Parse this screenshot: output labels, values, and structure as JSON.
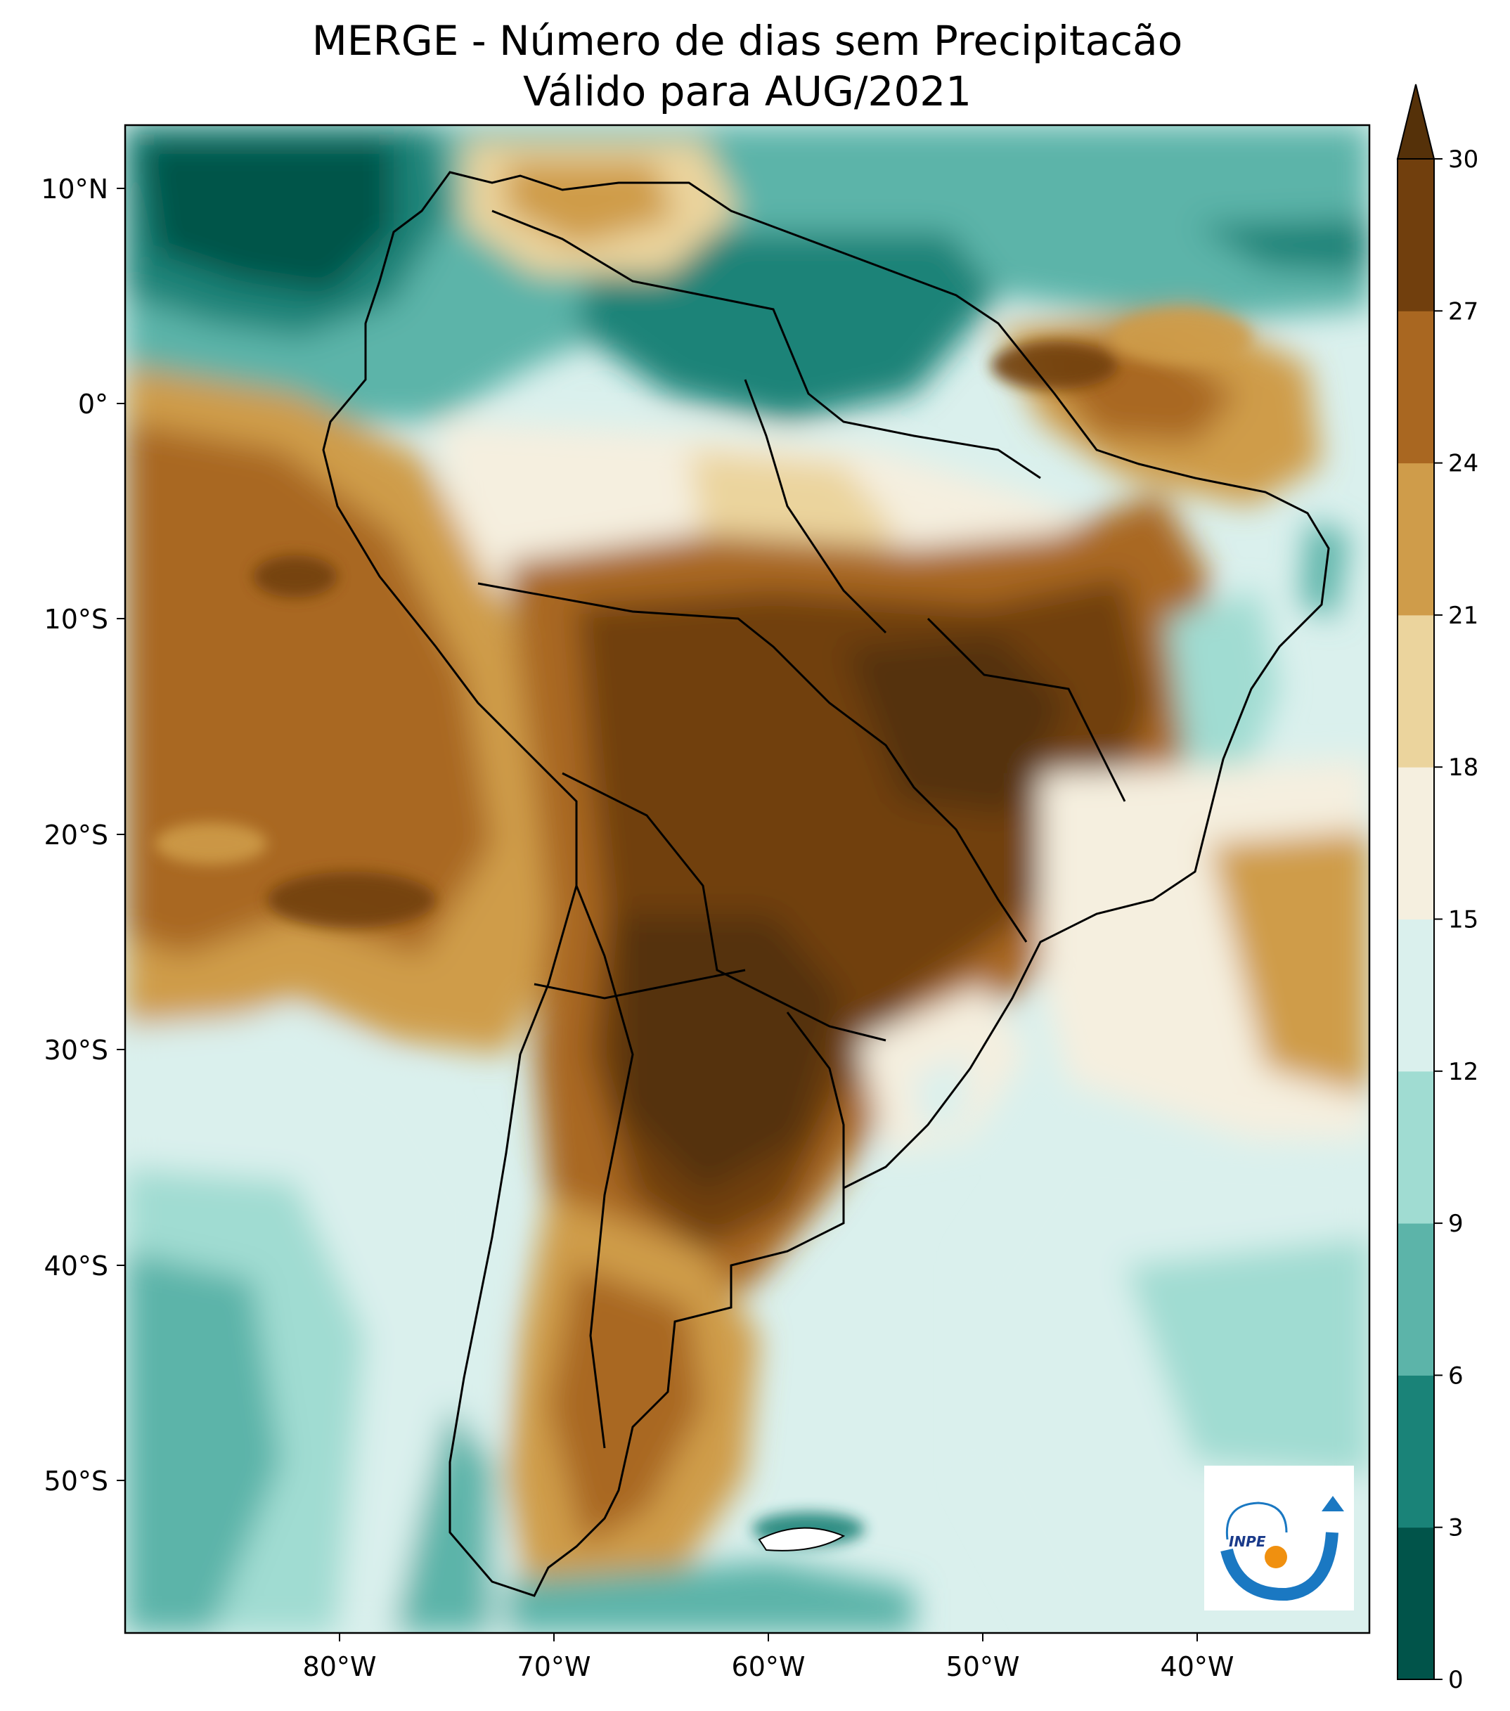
{
  "title": {
    "line1": "MERGE - Número de dias sem Precipitacão",
    "line2": "Válido para AUG/2021"
  },
  "map": {
    "region": "South America",
    "lon_range": [
      -90,
      -32
    ],
    "lat_range": [
      -57,
      13
    ],
    "lat_ticks": [
      {
        "value": 10,
        "label": "10°N"
      },
      {
        "value": 0,
        "label": "0°"
      },
      {
        "value": -10,
        "label": "10°S"
      },
      {
        "value": -20,
        "label": "20°S"
      },
      {
        "value": -30,
        "label": "30°S"
      },
      {
        "value": -40,
        "label": "40°S"
      },
      {
        "value": -50,
        "label": "50°S"
      }
    ],
    "lon_ticks": [
      {
        "value": -80,
        "label": "80°W"
      },
      {
        "value": -70,
        "label": "70°W"
      },
      {
        "value": -60,
        "label": "60°W"
      },
      {
        "value": -50,
        "label": "50°W"
      },
      {
        "value": -40,
        "label": "40°W"
      }
    ]
  },
  "colorbar": {
    "levels": [
      "0",
      "3",
      "6",
      "9",
      "12",
      "15",
      "18",
      "21",
      "24",
      "27",
      "30"
    ],
    "colors": [
      "#01544a",
      "#1a8378",
      "#5cb4a9",
      "#a0dcd2",
      "#daf0ed",
      "#f5efdf",
      "#ebd49d",
      "#cf9c4a",
      "#a96721",
      "#713f0d"
    ],
    "extend_color": "#553109"
  },
  "logo": {
    "text": "INPE"
  }
}
